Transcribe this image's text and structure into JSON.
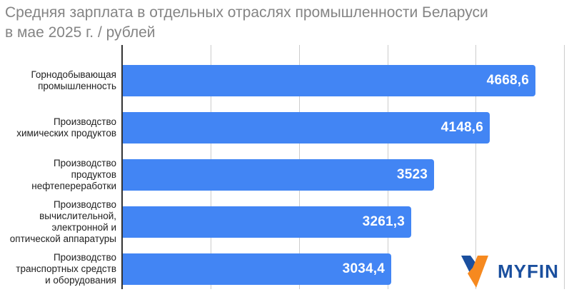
{
  "title": "Средняя зарплата в отдельных отраслях промышленности Беларуси\nв мае 2025 г. / рублей",
  "chart_data": {
    "type": "bar",
    "orientation": "horizontal",
    "title": "Средняя зарплата в отдельных отраслях промышленности Беларуси в мае 2025 г. / рублей",
    "categories": [
      "Горнодобывающая промышленность",
      "Производство химических продуктов",
      "Производство продуктов нефтепереработки",
      "Производство вычислительной, электронной и оптической аппаратуры",
      "Производство транспортных средств и оборудования"
    ],
    "values": [
      4668.6,
      4148.6,
      3523,
      3261.3,
      3034.4
    ],
    "value_labels": [
      "4668,6",
      "4148,6",
      "3523",
      "3261,3",
      "3034,4"
    ],
    "xlabel": "",
    "ylabel": "",
    "xlim": [
      0,
      5000
    ],
    "gridline_step": 1000,
    "grid": "vertical-gridlines",
    "legend": "none",
    "bar_color": "#4285f4"
  },
  "display": {
    "category_labels": [
      "Горнодобывающая\nпромышленность",
      "Производство\nхимических продуктов",
      "Производство\nпродуктов\nнефтепереработки",
      "Производство\nвычислительной,\nэлектронной и\nоптической аппаратуры",
      "Производство\nтранспортных средств\nи оборудования"
    ]
  },
  "logo": {
    "text": "MYFIN"
  },
  "colors": {
    "bar": "#4285f4",
    "value_text": "#ffffff",
    "title_text": "#848484",
    "category_text": "#212121",
    "gridline": "#cccccc",
    "axis": "#333333",
    "logo_blue": "#1a4f9e",
    "logo_orange": "#f6891f"
  }
}
